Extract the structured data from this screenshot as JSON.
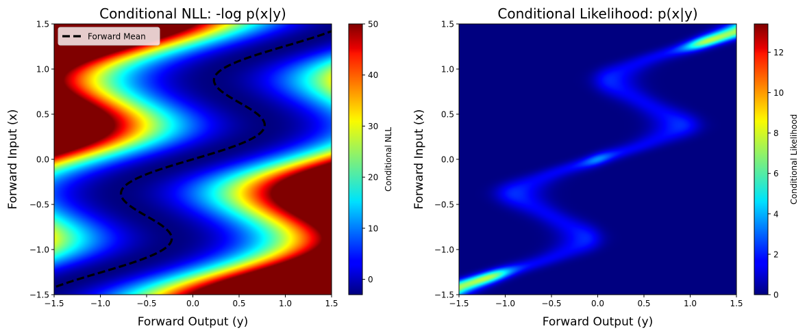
{
  "chart_data": [
    {
      "type": "heatmap",
      "title": "Conditional NLL: -log p(x|y)",
      "xlabel": "Forward Output (y)",
      "ylabel": "Forward Input (x)",
      "xlim": [
        -1.5,
        1.5
      ],
      "ylim": [
        -1.5,
        1.5
      ],
      "x_ticks": [
        -1.5,
        -1.0,
        -0.5,
        0.0,
        0.5,
        1.0,
        1.5
      ],
      "y_ticks": [
        -1.5,
        -1.0,
        -0.5,
        0.0,
        0.5,
        1.0,
        1.5
      ],
      "x_tick_labels": [
        "−1.5",
        "−1.0",
        "−0.5",
        "0.0",
        "0.5",
        "1.0",
        "1.5"
      ],
      "y_tick_labels": [
        "−1.5",
        "−1.0",
        "−0.5",
        "0.0",
        "0.5",
        "1.0",
        "1.5"
      ],
      "colormap": "jet",
      "field": "y_mean(x) = 0.8*x + 0.5*sin(5x); NLL = (y - y_mean)^2 / (2*0.025) - 3, clipped",
      "color_range": [
        -3,
        50
      ],
      "colorbar": {
        "label": "Conditional NLL",
        "ticks": [
          0,
          10,
          20,
          30,
          40,
          50
        ],
        "tick_labels": [
          "0",
          "10",
          "20",
          "30",
          "40",
          "50"
        ]
      },
      "series": [
        {
          "name": "Forward Mean",
          "style": "dashed",
          "color": "#000000",
          "formula": "y = 0.8*x + 0.5*sin(5x)"
        }
      ],
      "legend": {
        "position": "top-left",
        "entries": [
          "Forward Mean"
        ]
      }
    },
    {
      "type": "heatmap",
      "title": "Conditional Likelihood: p(x|y)",
      "xlabel": "Forward Output (y)",
      "ylabel": "Forward Input (x)",
      "xlim": [
        -1.5,
        1.5
      ],
      "ylim": [
        -1.5,
        1.5
      ],
      "x_ticks": [
        -1.5,
        -1.0,
        -0.5,
        0.0,
        0.5,
        1.0,
        1.5
      ],
      "y_ticks": [
        -1.5,
        -1.0,
        -0.5,
        0.0,
        0.5,
        1.0,
        1.5
      ],
      "x_tick_labels": [
        "−1.5",
        "−1.0",
        "−0.5",
        "0.0",
        "0.5",
        "1.0",
        "1.5"
      ],
      "y_tick_labels": [
        "−1.5",
        "−1.0",
        "−0.5",
        "0.0",
        "0.5",
        "1.0",
        "1.5"
      ],
      "colormap": "jet",
      "field": "p(x|y) normalized over x for each y",
      "color_range": [
        0,
        13.4
      ],
      "colorbar": {
        "label": "Conditional Likelihood",
        "ticks": [
          0,
          2,
          4,
          6,
          8,
          10,
          12
        ],
        "tick_labels": [
          "0",
          "2",
          "4",
          "6",
          "8",
          "10",
          "12"
        ]
      }
    }
  ]
}
